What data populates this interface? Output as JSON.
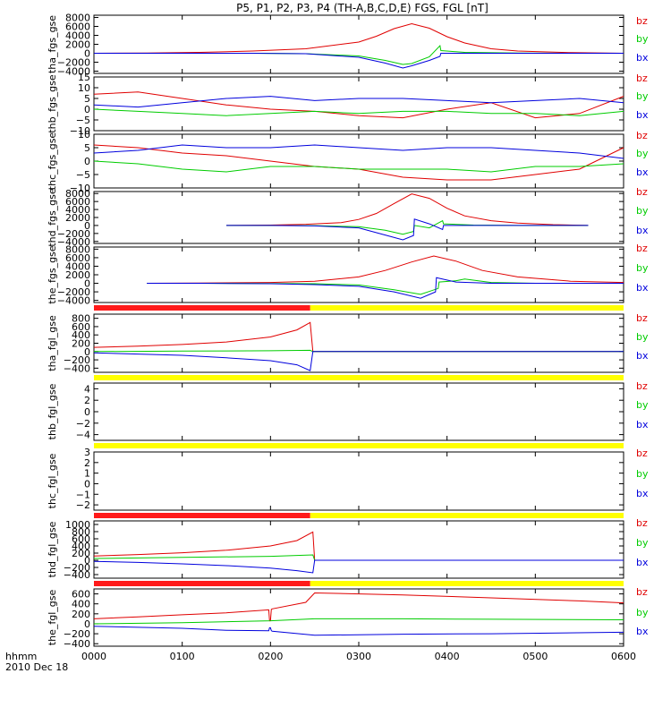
{
  "title": "P5, P1, P2, P3, P4 (TH-A,B,C,D,E) FGS, FGL [nT]",
  "xaxis": {
    "unit_label": "hhmm",
    "date_label": "2010 Dec 18",
    "ticks": [
      "0000",
      "0100",
      "0200",
      "0300",
      "0400",
      "0500",
      "0600"
    ]
  },
  "colors": {
    "bz": "#e00000",
    "by": "#00cc00",
    "bx": "#0000dd",
    "bar_red": "#ff1a1a",
    "bar_yellow": "#ffff00"
  },
  "chart_data": [
    {
      "type": "line",
      "ylabel": "tha_fgs_gse",
      "ylim": [
        -4500,
        8500
      ],
      "yticks": [
        "8000",
        "6000",
        "4000",
        "2000",
        "0",
        "−2000",
        "−4000"
      ],
      "ytick_values": [
        8000,
        6000,
        4000,
        2000,
        0,
        -2000,
        -4000
      ],
      "legend": [
        "bz",
        "by",
        "bx"
      ],
      "series": [
        {
          "name": "bz",
          "x": [
            0,
            60,
            120,
            180,
            240,
            300,
            320,
            340,
            360,
            380,
            400,
            420,
            450,
            480,
            540,
            600
          ],
          "y": [
            0,
            50,
            200,
            500,
            1000,
            2500,
            3800,
            5500,
            6600,
            5600,
            3700,
            2300,
            1000,
            500,
            150,
            0
          ]
        },
        {
          "name": "by",
          "x": [
            0,
            60,
            120,
            180,
            240,
            300,
            330,
            350,
            360,
            380,
            392,
            393,
            420,
            480,
            540,
            600
          ],
          "y": [
            0,
            0,
            0,
            0,
            -100,
            -600,
            -1600,
            -2500,
            -2300,
            -800,
            1700,
            600,
            200,
            50,
            0,
            0
          ]
        },
        {
          "name": "bx",
          "x": [
            0,
            60,
            120,
            180,
            240,
            300,
            330,
            350,
            360,
            380,
            392,
            393,
            420,
            480,
            540,
            600
          ],
          "y": [
            0,
            0,
            0,
            0,
            -100,
            -900,
            -2200,
            -3300,
            -2800,
            -1600,
            -700,
            0,
            0,
            0,
            0,
            0
          ]
        }
      ]
    },
    {
      "type": "line",
      "ylabel": "thb_fgs_gse",
      "ylim": [
        -10,
        15
      ],
      "yticks": [
        "15",
        "10",
        "5",
        "0",
        "−5",
        "−10"
      ],
      "ytick_values": [
        15,
        10,
        5,
        0,
        -5,
        -10
      ],
      "legend": [
        "bz",
        "by",
        "bx"
      ],
      "series": [
        {
          "name": "bz",
          "x": [
            0,
            50,
            100,
            150,
            200,
            250,
            300,
            350,
            400,
            450,
            500,
            550,
            600
          ],
          "y": [
            7,
            8,
            5,
            2,
            0,
            -1,
            -3,
            -4,
            0,
            3,
            -4,
            -2,
            6
          ]
        },
        {
          "name": "by",
          "x": [
            0,
            50,
            100,
            150,
            200,
            250,
            300,
            350,
            400,
            450,
            500,
            550,
            600
          ],
          "y": [
            0,
            -1,
            -2,
            -3,
            -2,
            -1,
            -2,
            -1,
            -1,
            -2,
            -2,
            -3,
            -1
          ]
        },
        {
          "name": "bx",
          "x": [
            0,
            50,
            100,
            150,
            200,
            250,
            300,
            350,
            400,
            450,
            500,
            550,
            600
          ],
          "y": [
            2,
            1,
            3,
            5,
            6,
            4,
            5,
            5,
            4,
            3,
            4,
            5,
            3
          ]
        }
      ]
    },
    {
      "type": "line",
      "ylabel": "thc_fgs_gse",
      "ylim": [
        -10,
        10
      ],
      "yticks": [
        "10",
        "5",
        "0",
        "−5",
        "−10"
      ],
      "ytick_values": [
        10,
        5,
        0,
        -5,
        -10
      ],
      "legend": [
        "bz",
        "by",
        "bx"
      ],
      "series": [
        {
          "name": "bz",
          "x": [
            0,
            50,
            100,
            150,
            200,
            250,
            300,
            350,
            400,
            450,
            500,
            550,
            600
          ],
          "y": [
            6,
            5,
            3,
            2,
            0,
            -2,
            -3,
            -6,
            -7,
            -7,
            -5,
            -3,
            5
          ]
        },
        {
          "name": "by",
          "x": [
            0,
            50,
            100,
            150,
            200,
            250,
            300,
            350,
            400,
            450,
            500,
            550,
            600
          ],
          "y": [
            0,
            -1,
            -3,
            -4,
            -2,
            -2,
            -3,
            -3,
            -3,
            -4,
            -2,
            -2,
            -1
          ]
        },
        {
          "name": "bx",
          "x": [
            0,
            50,
            100,
            150,
            200,
            250,
            300,
            350,
            400,
            450,
            500,
            550,
            600
          ],
          "y": [
            3,
            4,
            6,
            5,
            5,
            6,
            5,
            4,
            5,
            5,
            4,
            3,
            1
          ]
        }
      ]
    },
    {
      "type": "line",
      "ylabel": "thd_fgs_gse",
      "ylim": [
        -4500,
        8500
      ],
      "yticks": [
        "8000",
        "6000",
        "4000",
        "2000",
        "0",
        "−2000",
        "−4000"
      ],
      "ytick_values": [
        8000,
        6000,
        4000,
        2000,
        0,
        -2000,
        -4000
      ],
      "legend": [
        "bz",
        "by",
        "bx"
      ],
      "series": [
        {
          "name": "bz",
          "x": [
            150,
            200,
            240,
            280,
            300,
            320,
            340,
            360,
            380,
            400,
            420,
            450,
            480,
            520,
            560
          ],
          "y": [
            0,
            100,
            300,
            700,
            1500,
            3000,
            5500,
            7900,
            6800,
            4300,
            2400,
            1200,
            600,
            200,
            0
          ]
        },
        {
          "name": "by",
          "x": [
            150,
            200,
            250,
            300,
            330,
            350,
            362,
            363,
            380,
            395,
            396,
            430,
            480,
            560
          ],
          "y": [
            0,
            0,
            -50,
            -300,
            -1200,
            -2200,
            -1500,
            0,
            -600,
            1200,
            400,
            100,
            0,
            0
          ]
        },
        {
          "name": "bx",
          "x": [
            150,
            200,
            250,
            300,
            330,
            350,
            362,
            363,
            380,
            395,
            396,
            430,
            480,
            560
          ],
          "y": [
            0,
            0,
            -100,
            -600,
            -2400,
            -3600,
            -2500,
            1600,
            400,
            -1000,
            0,
            0,
            0,
            0
          ]
        }
      ]
    },
    {
      "type": "line",
      "ylabel": "the_fgs_gse",
      "ylim": [
        -4500,
        8500
      ],
      "yticks": [
        "8000",
        "6000",
        "4000",
        "2000",
        "0",
        "−2000",
        "−4000"
      ],
      "ytick_values": [
        8000,
        6000,
        4000,
        2000,
        0,
        -2000,
        -4000
      ],
      "legend": [
        "bz",
        "by",
        "bx"
      ],
      "series": [
        {
          "name": "bz",
          "x": [
            60,
            120,
            200,
            250,
            300,
            330,
            360,
            385,
            410,
            440,
            480,
            540,
            600
          ],
          "y": [
            0,
            50,
            200,
            500,
            1500,
            3000,
            5000,
            6400,
            5200,
            3000,
            1500,
            500,
            200
          ]
        },
        {
          "name": "by",
          "x": [
            60,
            120,
            200,
            250,
            300,
            340,
            370,
            390,
            391,
            410,
            420,
            450,
            500,
            600
          ],
          "y": [
            0,
            0,
            -50,
            -100,
            -400,
            -1500,
            -2600,
            -1200,
            300,
            600,
            1000,
            200,
            0,
            0
          ]
        },
        {
          "name": "bx",
          "x": [
            60,
            120,
            200,
            250,
            300,
            340,
            370,
            387,
            388,
            410,
            450,
            500,
            600
          ],
          "y": [
            0,
            0,
            -100,
            -300,
            -700,
            -2000,
            -3500,
            -2000,
            1300,
            300,
            0,
            0,
            0
          ]
        }
      ]
    },
    {
      "type": "line",
      "ylabel": "tha_fgl_gse",
      "ylim": [
        -500,
        900
      ],
      "yticks": [
        "800",
        "600",
        "400",
        "200",
        "0",
        "−200",
        "−400"
      ],
      "ytick_values": [
        800,
        600,
        400,
        200,
        0,
        -200,
        -400
      ],
      "legend": [
        "bz",
        "by",
        "bx"
      ],
      "bar": [
        {
          "from": 0,
          "to": 245,
          "color": "red"
        },
        {
          "from": 245,
          "to": 600,
          "color": "yellow"
        }
      ],
      "series": [
        {
          "name": "bz",
          "x": [
            0,
            50,
            100,
            150,
            200,
            230,
            245,
            248,
            600
          ],
          "y": [
            100,
            130,
            170,
            230,
            350,
            520,
            700,
            0,
            0
          ]
        },
        {
          "name": "by",
          "x": [
            0,
            100,
            200,
            245,
            248,
            600
          ],
          "y": [
            0,
            10,
            20,
            30,
            0,
            0
          ]
        },
        {
          "name": "bx",
          "x": [
            0,
            50,
            100,
            150,
            200,
            230,
            245,
            248,
            600
          ],
          "y": [
            -30,
            -60,
            -90,
            -150,
            -220,
            -320,
            -460,
            0,
            0
          ]
        }
      ]
    },
    {
      "type": "line",
      "ylabel": "thb_fgl_gse",
      "ylim": [
        -5,
        5
      ],
      "yticks": [
        "4",
        "2",
        "0",
        "−2",
        "−4"
      ],
      "ytick_values": [
        4,
        2,
        0,
        -2,
        -4
      ],
      "legend": [
        "bz",
        "by",
        "bx"
      ],
      "bar": [
        {
          "from": 0,
          "to": 600,
          "color": "yellow"
        }
      ],
      "series": []
    },
    {
      "type": "line",
      "ylabel": "thc_fgl_gse",
      "ylim": [
        -2.5,
        3
      ],
      "yticks": [
        "3",
        "2",
        "1",
        "0",
        "−1",
        "−2"
      ],
      "ytick_values": [
        3,
        2,
        1,
        0,
        -1,
        -2
      ],
      "legend": [
        "bz",
        "by",
        "bx"
      ],
      "bar": [
        {
          "from": 0,
          "to": 600,
          "color": "yellow"
        }
      ],
      "series": []
    },
    {
      "type": "line",
      "ylabel": "thd_fgl_gse",
      "ylim": [
        -500,
        1100
      ],
      "yticks": [
        "1000",
        "800",
        "600",
        "400",
        "200",
        "0",
        "−200",
        "−400"
      ],
      "ytick_values": [
        1000,
        800,
        600,
        400,
        200,
        0,
        -200,
        -400
      ],
      "legend": [
        "bz",
        "by",
        "bx"
      ],
      "bar": [
        {
          "from": 0,
          "to": 245,
          "color": "red"
        },
        {
          "from": 245,
          "to": 600,
          "color": "yellow"
        }
      ],
      "series": [
        {
          "name": "bz",
          "x": [
            0,
            50,
            100,
            150,
            200,
            230,
            248,
            250,
            600
          ],
          "y": [
            120,
            160,
            210,
            280,
            400,
            550,
            790,
            0,
            0
          ]
        },
        {
          "name": "by",
          "x": [
            0,
            100,
            200,
            248,
            250,
            600
          ],
          "y": [
            50,
            80,
            110,
            150,
            0,
            0
          ]
        },
        {
          "name": "bx",
          "x": [
            0,
            50,
            100,
            150,
            200,
            230,
            248,
            250,
            600
          ],
          "y": [
            -30,
            -60,
            -100,
            -150,
            -220,
            -290,
            -350,
            0,
            0
          ]
        }
      ]
    },
    {
      "type": "line",
      "ylabel": "the_fgl_gse",
      "ylim": [
        -450,
        700
      ],
      "yticks": [
        "600",
        "400",
        "200",
        "0",
        "−200",
        "−400"
      ],
      "ytick_values": [
        600,
        400,
        200,
        0,
        -200,
        -400
      ],
      "legend": [
        "bz",
        "by",
        "bx"
      ],
      "bar": [
        {
          "from": 0,
          "to": 245,
          "color": "red"
        },
        {
          "from": 245,
          "to": 600,
          "color": "yellow"
        }
      ],
      "series": [
        {
          "name": "bz",
          "x": [
            0,
            50,
            100,
            150,
            198,
            199,
            200,
            201,
            202,
            240,
            250,
            350,
            450,
            550,
            600
          ],
          "y": [
            100,
            140,
            180,
            220,
            280,
            60,
            60,
            290,
            300,
            430,
            620,
            580,
            520,
            460,
            420
          ]
        },
        {
          "name": "by",
          "x": [
            0,
            100,
            200,
            250,
            350,
            450,
            600
          ],
          "y": [
            0,
            20,
            60,
            100,
            100,
            90,
            80
          ]
        },
        {
          "name": "bx",
          "x": [
            0,
            50,
            100,
            150,
            198,
            199,
            200,
            201,
            202,
            250,
            350,
            450,
            600
          ],
          "y": [
            -50,
            -70,
            -90,
            -130,
            -140,
            -80,
            -80,
            -140,
            -150,
            -230,
            -210,
            -200,
            -170
          ]
        }
      ]
    }
  ]
}
